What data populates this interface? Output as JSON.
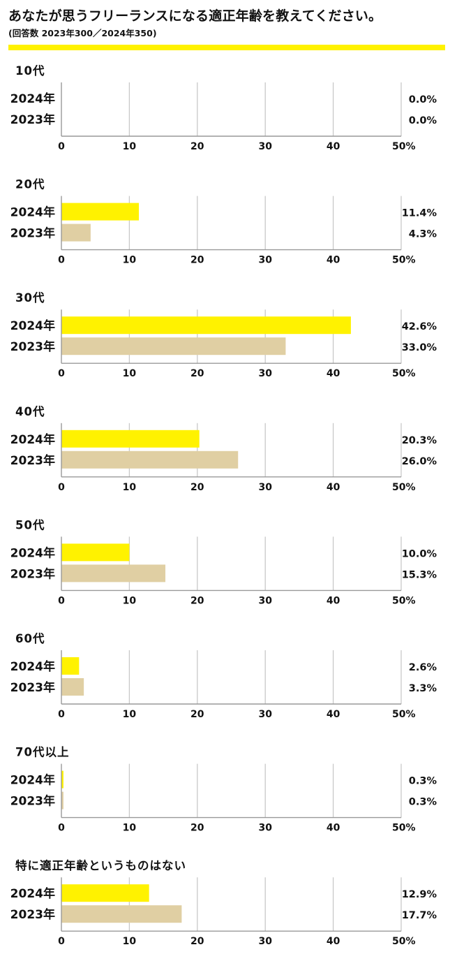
{
  "header": {
    "title": "あなたが思うフリーランスになる適正年齢を教えてください。",
    "subtitle": "(回答数 2023年300／2024年350)"
  },
  "colors": {
    "y2024": "#fff200",
    "y2023": "#e0cfa3",
    "grid": "#c8c8c8",
    "axis": "#999999",
    "rule": "#fff200"
  },
  "chart_data": {
    "type": "bar",
    "orientation": "horizontal",
    "xlim": [
      0,
      50
    ],
    "ticks": [
      "0",
      "10",
      "20",
      "30",
      "40",
      "50%"
    ],
    "grid": true,
    "series_names": [
      "2024年",
      "2023年"
    ],
    "panels": [
      {
        "category": "10代",
        "values": [
          0.0,
          0.0
        ],
        "labels": [
          "0.0%",
          "0.0%"
        ]
      },
      {
        "category": "20代",
        "values": [
          11.4,
          4.3
        ],
        "labels": [
          "11.4%",
          "4.3%"
        ]
      },
      {
        "category": "30代",
        "values": [
          42.6,
          33.0
        ],
        "labels": [
          "42.6%",
          "33.0%"
        ]
      },
      {
        "category": "40代",
        "values": [
          20.3,
          26.0
        ],
        "labels": [
          "20.3%",
          "26.0%"
        ]
      },
      {
        "category": "50代",
        "values": [
          10.0,
          15.3
        ],
        "labels": [
          "10.0%",
          "15.3%"
        ]
      },
      {
        "category": "60代",
        "values": [
          2.6,
          3.3
        ],
        "labels": [
          "2.6%",
          "3.3%"
        ]
      },
      {
        "category": "70代以上",
        "values": [
          0.3,
          0.3
        ],
        "labels": [
          "0.3%",
          "0.3%"
        ]
      },
      {
        "category": "特に適正年齢というものはない",
        "values": [
          12.9,
          17.7
        ],
        "labels": [
          "12.9%",
          "17.7%"
        ]
      }
    ]
  }
}
